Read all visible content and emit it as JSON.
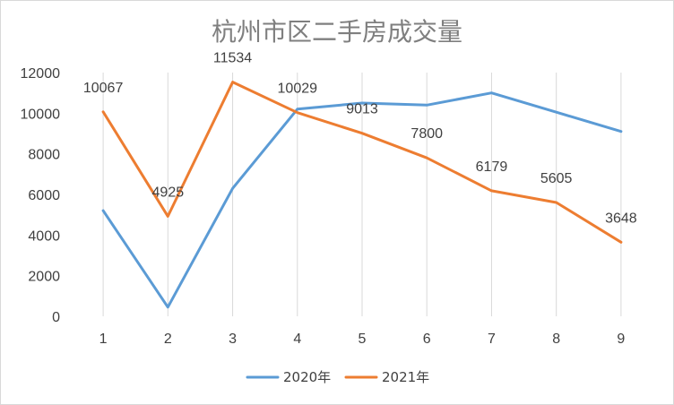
{
  "chart_data": {
    "type": "line",
    "title": "杭州市区二手房成交量",
    "x": [
      "1",
      "2",
      "3",
      "4",
      "5",
      "6",
      "7",
      "8",
      "9"
    ],
    "ylim": [
      0,
      12000
    ],
    "yticks": [
      0,
      2000,
      4000,
      6000,
      8000,
      10000,
      12000
    ],
    "grid": "vertical",
    "legend_position": "bottom",
    "series": [
      {
        "name": "2020年",
        "color": "#5b9bd5",
        "values": [
          5200,
          450,
          6300,
          10200,
          10500,
          10400,
          11000,
          10050,
          9100
        ],
        "show_labels": false
      },
      {
        "name": "2021年",
        "color": "#ed7d31",
        "values": [
          10067,
          4925,
          11534,
          10029,
          9013,
          7800,
          6179,
          5605,
          3648
        ],
        "show_labels": true
      }
    ]
  }
}
